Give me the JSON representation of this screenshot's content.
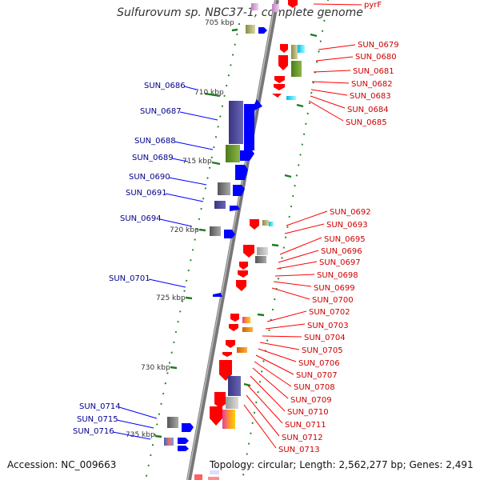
{
  "title": "Sulfurovum sp. NBC37-1, complete genome",
  "accession": "Accession: NC_009663",
  "topology": "Topology: circular; Length: 2,562,277 bp; Genes: 2,491",
  "colors": {
    "forward": "#0000ff",
    "reverse": "#ff0000",
    "backbone": "#888888",
    "dots": "#2a8a2a"
  },
  "kbp_ticks": [
    {
      "label": "705 kbp"
    },
    {
      "label": "710 kbp"
    },
    {
      "label": "715 kbp"
    },
    {
      "label": "720 kbp"
    },
    {
      "label": "725 kbp"
    },
    {
      "label": "730 kbp"
    },
    {
      "label": "735 kbp"
    }
  ],
  "top_gene": "pyrF",
  "forward_genes": [
    "SUN_0686",
    "SUN_0687",
    "SUN_0688",
    "SUN_0689",
    "SUN_0690",
    "SUN_0691",
    "SUN_0694",
    "SUN_0701",
    "SUN_0714",
    "SUN_0715",
    "SUN_0716"
  ],
  "reverse_genes": [
    "SUN_0679",
    "SUN_0680",
    "SUN_0681",
    "SUN_0682",
    "SUN_0683",
    "SUN_0684",
    "SUN_0685",
    "SUN_0692",
    "SUN_0693",
    "SUN_0695",
    "SUN_0696",
    "SUN_0697",
    "SUN_0698",
    "SUN_0699",
    "SUN_0700",
    "SUN_0702",
    "SUN_0703",
    "SUN_0704",
    "SUN_0705",
    "SUN_0706",
    "SUN_0707",
    "SUN_0708",
    "SUN_0709",
    "SUN_0710",
    "SUN_0711",
    "SUN_0712",
    "SUN_0713"
  ]
}
